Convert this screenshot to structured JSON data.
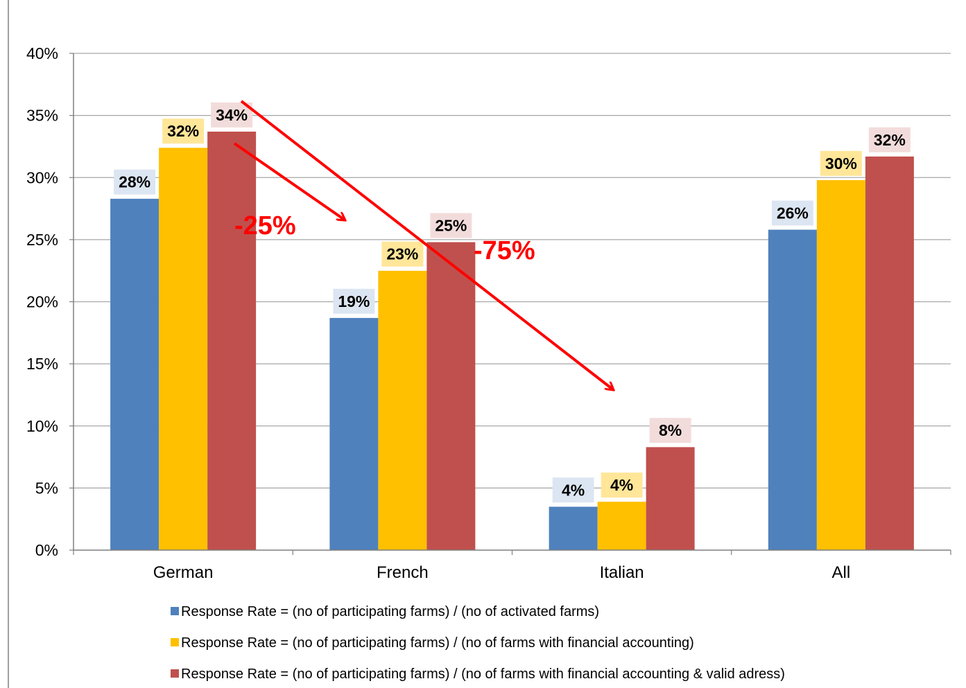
{
  "chart_data": {
    "type": "bar",
    "title": "",
    "xlabel": "",
    "ylabel": "",
    "ylim": [
      0,
      40
    ],
    "y_ticks": [
      "0%",
      "5%",
      "10%",
      "15%",
      "20%",
      "25%",
      "30%",
      "35%",
      "40%"
    ],
    "categories": [
      "German",
      "French",
      "Italian",
      "All"
    ],
    "grid": "horizontal",
    "legend_position": "bottom",
    "series": [
      {
        "name": "Response Rate = (no of participating farms) / (no of activated farms)",
        "color": "#4f81bd",
        "label_bg": "#dce6f2",
        "values": [
          28.3,
          18.7,
          3.5,
          25.8
        ],
        "labels": [
          "28%",
          "19%",
          "4%",
          "26%"
        ]
      },
      {
        "name": "Response Rate = (no of participating farms) / (no of farms with financial accounting)",
        "color": "#ffc000",
        "label_bg": "#ffe699",
        "values": [
          32.4,
          22.5,
          3.9,
          29.8
        ],
        "labels": [
          "32%",
          "23%",
          "4%",
          "30%"
        ]
      },
      {
        "name": "Response Rate = (no of participating farms) / (no of farms with financial accounting & valid adress)",
        "color": "#c0504d",
        "label_bg": "#f2dcdb",
        "values": [
          33.7,
          24.8,
          8.3,
          31.7
        ],
        "labels": [
          "34%",
          "25%",
          "8%",
          "32%"
        ]
      }
    ],
    "annotations": [
      {
        "text": "-25%",
        "color": "#ff0000"
      },
      {
        "text": "-75%",
        "color": "#ff0000"
      }
    ]
  }
}
